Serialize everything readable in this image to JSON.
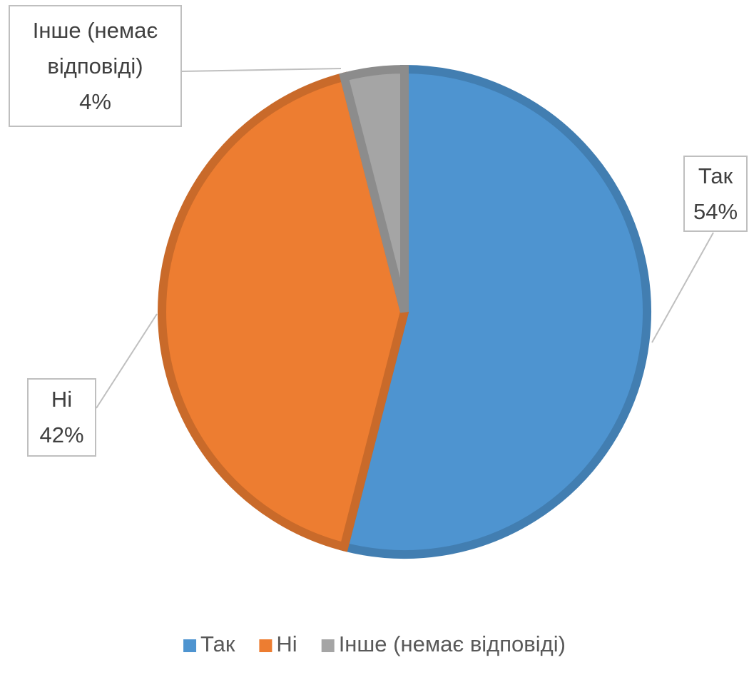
{
  "chart_data": {
    "type": "pie",
    "categories": [
      "Так",
      "Ні",
      "Інше (немає відповіді)"
    ],
    "values": [
      54,
      42,
      4
    ],
    "value_labels": [
      "54%",
      "42%",
      "4%"
    ],
    "colors": [
      "#4e94d0",
      "#ed7d31",
      "#a5a5a5"
    ],
    "legend": "bottom"
  }
}
